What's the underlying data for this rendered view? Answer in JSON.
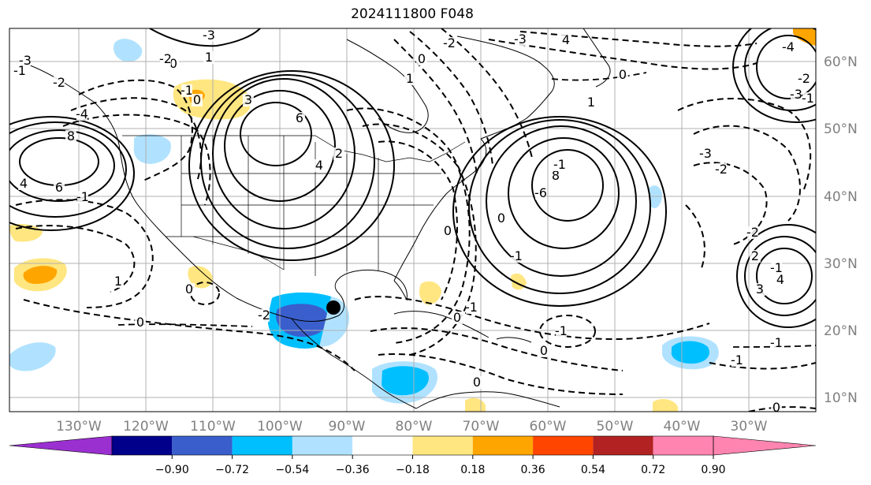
{
  "title": "2024111800 F048",
  "map": {
    "longitude_labels": [
      "130°W",
      "120°W",
      "110°W",
      "100°W",
      "90°W",
      "80°W",
      "70°W",
      "60°W",
      "50°W",
      "40°W",
      "30°W"
    ],
    "latitude_labels": [
      "60°N",
      "50°N",
      "40°N",
      "30°N",
      "20°N",
      "10°N"
    ],
    "lon_range": [
      -140,
      -20
    ],
    "lat_range": [
      8,
      65
    ],
    "gridlines": true,
    "contour_labels": [
      "-3",
      "-4",
      "-2",
      "-1",
      "0",
      "-1",
      "0",
      "3",
      "6",
      "4",
      "2",
      "1",
      "-3",
      "-2",
      "-1",
      "0",
      "1",
      "8",
      "6",
      "4",
      "-3",
      "-2",
      "0",
      "1",
      "4",
      "-4",
      "-3",
      "-2",
      "-1",
      "0",
      "-2",
      "-1",
      "4",
      "3",
      "-3",
      "-2",
      "8",
      "-6",
      "-1",
      "0",
      "-1",
      "0",
      "-1",
      "0",
      "0",
      "0",
      "-1",
      "-2",
      "0",
      "2",
      "1",
      "-1",
      "-1",
      "0"
    ],
    "marker": "black-dot"
  },
  "colorbar": {
    "colors": [
      "#9b30d0",
      "#00008b",
      "#3a5fcd",
      "#00bfff",
      "#b0e2ff",
      "#ffffff",
      "#ffe680",
      "#ffa500",
      "#ff4500",
      "#b22222",
      "#ff85b0",
      "#ff85b0"
    ],
    "tick_labels": [
      "−0.90",
      "−0.72",
      "−0.54",
      "−0.36",
      "−0.18",
      "0.18",
      "0.36",
      "0.54",
      "0.72",
      "0.90"
    ]
  }
}
